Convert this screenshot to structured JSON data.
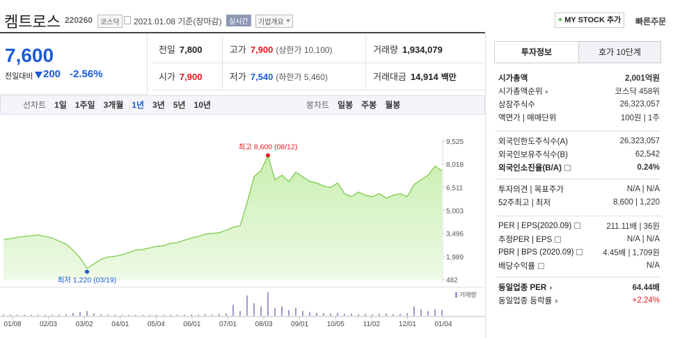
{
  "header": {
    "name": "켐트로스",
    "code": "220260",
    "market": "코스닥",
    "date": "2021.01.08 기준(장마감)",
    "realtime": "실시간",
    "company_info": "기업개요",
    "mystock": "MY STOCK 추가",
    "quick_order": "빠른주문"
  },
  "quote": {
    "price": "7,600",
    "change_label": "전일대비",
    "change": "200",
    "change_rate": "-2.56%",
    "table": [
      [
        {
          "label": "전일",
          "value": "7,800"
        },
        {
          "label": "고가",
          "value": "7,900",
          "note": "(상한가 10,100)",
          "color": "#e5161c"
        },
        {
          "label": "거래량",
          "value": "1,934,079"
        }
      ],
      [
        {
          "label": "시가",
          "value": "7,900",
          "color": "#e5161c"
        },
        {
          "label": "저가",
          "value": "7,540",
          "note": "(하한가 5,460)",
          "color": "#1a5bd6"
        },
        {
          "label": "거래대금",
          "value": "14,914",
          "unit": "백만"
        }
      ]
    ]
  },
  "chart_tabs": {
    "line_label": "선차트",
    "line": [
      "1일",
      "1주일",
      "3개월",
      "1년",
      "3년",
      "5년",
      "10년"
    ],
    "selected": 3,
    "candle_label": "봉차트",
    "candle": [
      "일봉",
      "주봉",
      "월봉"
    ]
  },
  "chart": {
    "type": "line",
    "color": "#7ecb4a",
    "values": [
      3100,
      3150,
      3250,
      3300,
      3350,
      3400,
      3300,
      3200,
      3000,
      2800,
      2400,
      1900,
      1220,
      1500,
      1800,
      1950,
      2000,
      2100,
      2250,
      2400,
      2450,
      2550,
      2650,
      2700,
      2850,
      2900,
      3050,
      3200,
      3300,
      3450,
      3500,
      3550,
      3700,
      3900,
      4000,
      5500,
      7200,
      7600,
      8600,
      7000,
      7300,
      6900,
      7500,
      7200,
      6900,
      6800,
      6600,
      6500,
      6800,
      6100,
      5900,
      6200,
      6000,
      5900,
      6100,
      5800,
      6000,
      6100,
      5900,
      6700,
      7000,
      7300,
      7900,
      7600
    ],
    "ylim": [
      482,
      9525
    ],
    "yticks": [
      {
        "value": 9525,
        "label": "9,525"
      },
      {
        "value": 8018,
        "label": "8,018"
      },
      {
        "value": 6511,
        "label": "6,511"
      },
      {
        "value": 5003,
        "label": "5,003"
      },
      {
        "value": 3496,
        "label": "3,496"
      },
      {
        "value": 1989,
        "label": "1,989"
      },
      {
        "value": 482,
        "label": "482"
      }
    ],
    "x_labels": [
      "01/08",
      "02/03",
      "03/02",
      "04/01",
      "05/04",
      "06/01",
      "07/01",
      "08/03",
      "09/01",
      "10/05",
      "11/02",
      "12/01",
      "01/04"
    ],
    "high_label": "최고 8,600 (08/12)",
    "low_label": "최저 1,220 (03/19)",
    "volume_label": "거래량",
    "volume_color": "#9a9ac8",
    "volume_ylim": [
      0,
      8000000
    ],
    "volume": [
      400000,
      300000,
      350000,
      300000,
      250000,
      300000,
      280000,
      300000,
      350000,
      500000,
      900000,
      1200000,
      1500000,
      700000,
      400000,
      350000,
      300000,
      300000,
      280000,
      260000,
      300000,
      250000,
      300000,
      280000,
      300000,
      350000,
      300000,
      400000,
      350000,
      500000,
      400000,
      600000,
      800000,
      3500000,
      1500000,
      6500000,
      4000000,
      3000000,
      7500000,
      2500000,
      3000000,
      1800000,
      2500000,
      1500000,
      1200000,
      900000,
      800000,
      700000,
      900000,
      600000,
      700000,
      500000,
      600000,
      500000,
      600000,
      700000,
      500000,
      600000,
      800000,
      3000000,
      2000000,
      1500000,
      2000000,
      1900000
    ]
  },
  "info_panel": {
    "tabs": [
      "투자정보",
      "호가 10단계"
    ],
    "sections": [
      [
        {
          "label": "시가총액",
          "value": "2,001억원",
          "bold": true
        },
        {
          "label": "시가총액순위",
          "value": "코스닥 458위",
          "arrow": true
        },
        {
          "label": "상장주식수",
          "value": "26,323,057"
        },
        {
          "label": "액면가 | 매매단위",
          "value": "100원 | 1주"
        }
      ],
      [
        {
          "label": "외국인한도주식수(A)",
          "value": "26,323,057"
        },
        {
          "label": "외국인보유주식수(B)",
          "value": "62,542"
        },
        {
          "label": "외국인소진율(B/A)",
          "value": "0.24%",
          "bold": true,
          "help": true
        }
      ],
      [
        {
          "label": "투자의견 | 목표주가",
          "value": "N/A | N/A"
        },
        {
          "label": "52주최고 | 최저",
          "value": "8,600 | 1,220"
        }
      ],
      [
        {
          "label": "PER | EPS(2020.09)",
          "value": "211.11배 | 36원",
          "help": true
        },
        {
          "label": "추정PER | EPS",
          "value": "N/A | N/A",
          "help": true
        },
        {
          "label": "PBR | BPS (2020.09)",
          "value": "4.45배 | 1,709원",
          "help": true
        },
        {
          "label": "배당수익률",
          "value": "N/A",
          "help": true
        }
      ],
      [
        {
          "label": "동일업종 PER",
          "value": "64.44배",
          "bold": true,
          "arrow": true
        },
        {
          "label": "동일업종 등락률",
          "value": "+2.24%",
          "arrow": true,
          "color": "#e5161c"
        }
      ]
    ]
  }
}
